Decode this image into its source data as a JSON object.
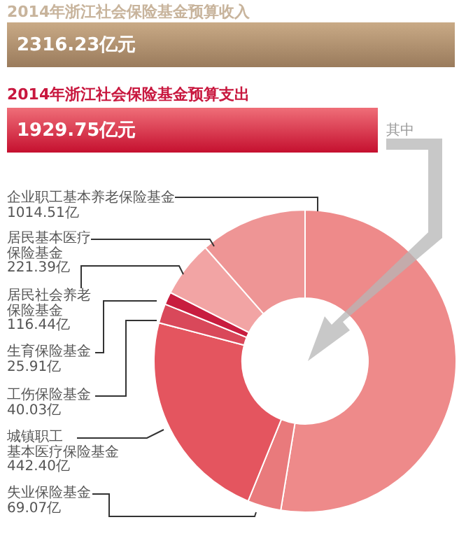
{
  "chart_data": {
    "type": "donut",
    "annotations": [
      "2014年浙江社会保险基金预算收入",
      "2316.23亿元",
      "2014年浙江社会保险基金预算支出",
      "1929.75亿元",
      "其中"
    ],
    "categories": [
      "企业职工基本养老保险基金",
      "失业保险基金",
      "城镇职工基本医疗保险基金",
      "工伤保险基金",
      "生育保险基金",
      "居民社会养老保险基金",
      "居民基本医疗保险基金"
    ],
    "values": [
      1014.51,
      69.07,
      442.4,
      40.03,
      25.91,
      116.44,
      221.39
    ],
    "value_labels": [
      "1014.51亿",
      "69.07亿",
      "442.40亿",
      "40.03亿",
      "25.91亿",
      "116.44亿",
      "221.39亿"
    ],
    "colors": [
      "#ee8a8a",
      "#e97a7c",
      "#e4555f",
      "#d9485a",
      "#c81d3f",
      "#f2a4a4",
      "#ee9595"
    ]
  }
}
